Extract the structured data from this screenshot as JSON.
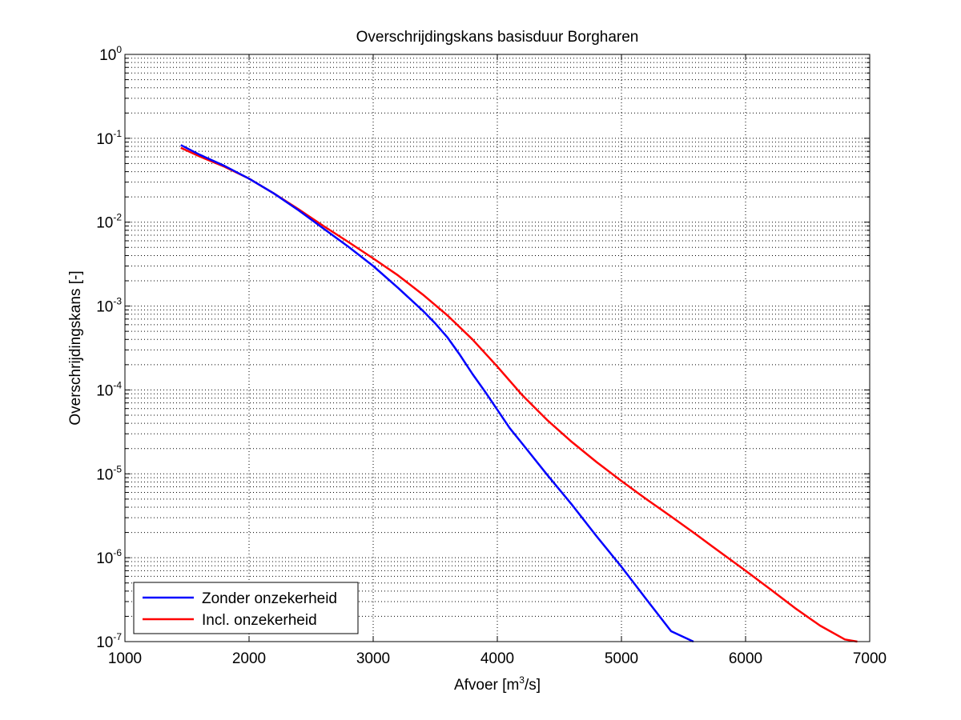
{
  "chart_data": {
    "type": "line",
    "title": "Overschrijdingskans basisduur Borgharen",
    "xlabel": {
      "pre": "Afvoer [m",
      "sup": "3",
      "post": "/s]"
    },
    "ylabel": "Overschrijdingskans [-]",
    "xscale": "linear",
    "yscale": "log",
    "xlim": [
      1000,
      7000
    ],
    "ylim": [
      1e-07,
      1
    ],
    "xticks": [
      1000,
      2000,
      3000,
      4000,
      5000,
      6000,
      7000
    ],
    "xtick_labels": [
      "1000",
      "2000",
      "3000",
      "4000",
      "5000",
      "6000",
      "7000"
    ],
    "ytick_labels": [
      {
        "base": "10",
        "exp": "0"
      },
      {
        "base": "10",
        "exp": "-1"
      },
      {
        "base": "10",
        "exp": "-2"
      },
      {
        "base": "10",
        "exp": "-3"
      },
      {
        "base": "10",
        "exp": "-4"
      },
      {
        "base": "10",
        "exp": "-5"
      },
      {
        "base": "10",
        "exp": "-6"
      },
      {
        "base": "10",
        "exp": "-7"
      }
    ],
    "grid": "major and minor, dotted",
    "legend_position": "bottom-left",
    "series": [
      {
        "name": "Zonder onzekerheid",
        "color": "#0000ff",
        "x": [
          1450,
          1600,
          1800,
          2000,
          2200,
          2400,
          2600,
          2800,
          3000,
          3200,
          3400,
          3500,
          3600,
          3700,
          3800,
          3900,
          4000,
          4100,
          4200,
          4400,
          4600,
          4800,
          5000,
          5200,
          5400,
          5580
        ],
        "y": [
          0.083,
          0.064,
          0.047,
          0.033,
          0.022,
          0.0138,
          0.0084,
          0.0051,
          0.003,
          0.00165,
          0.00088,
          0.00062,
          0.00042,
          0.00026,
          0.000155,
          9.6e-05,
          5.8e-05,
          3.5e-05,
          2.3e-05,
          9.8e-06,
          4.3e-06,
          1.8e-06,
          7.8e-07,
          3.2e-07,
          1.33e-07,
          1e-07
        ]
      },
      {
        "name": "Incl. onzekerheid",
        "color": "#ff0000",
        "x": [
          1450,
          1600,
          1800,
          2000,
          2200,
          2400,
          2600,
          2800,
          3000,
          3200,
          3400,
          3600,
          3800,
          4000,
          4200,
          4400,
          4600,
          4800,
          5000,
          5200,
          5400,
          5600,
          5800,
          6000,
          6200,
          6400,
          6600,
          6800,
          6900
        ],
        "y": [
          0.077,
          0.061,
          0.046,
          0.033,
          0.022,
          0.0142,
          0.009,
          0.0058,
          0.0037,
          0.00232,
          0.00137,
          0.00077,
          0.0004,
          0.00019,
          8.7e-05,
          4.4e-05,
          2.4e-05,
          1.38e-05,
          8.2e-06,
          5e-06,
          3.1e-06,
          1.9e-06,
          1.15e-06,
          7e-07,
          4.2e-07,
          2.5e-07,
          1.55e-07,
          1.06e-07,
          1e-07
        ]
      }
    ]
  }
}
